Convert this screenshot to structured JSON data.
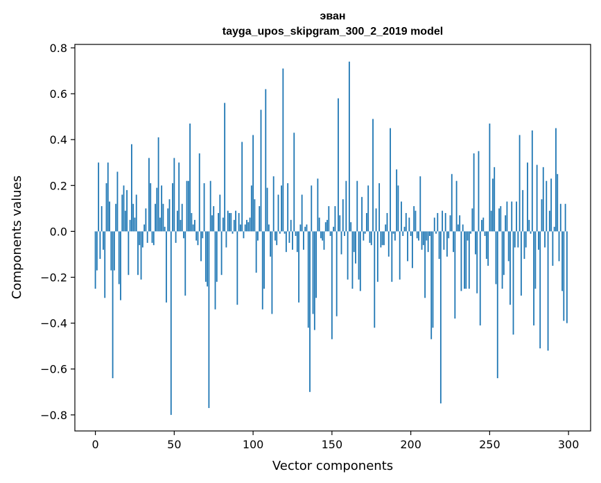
{
  "chart_data": {
    "type": "bar",
    "title": "эван",
    "subtitle": "tayga_upos_skipgram_300_2_2019 model",
    "xlabel": "Vector components",
    "ylabel": "Components values",
    "xlim": [
      -13,
      314
    ],
    "ylim": [
      -0.87,
      0.815
    ],
    "x_ticks": [
      0,
      50,
      100,
      150,
      200,
      250,
      300
    ],
    "x_tick_labels": [
      "0",
      "50",
      "100",
      "150",
      "200",
      "250",
      "300"
    ],
    "y_ticks": [
      -0.8,
      -0.6,
      -0.4,
      -0.2,
      0.0,
      0.2,
      0.4,
      0.6,
      0.8
    ],
    "y_tick_labels": [
      "−0.8",
      "−0.6",
      "−0.4",
      "−0.2",
      "0.0",
      "0.2",
      "0.4",
      "0.6",
      "0.8"
    ],
    "bar_color": "#1f77b4",
    "series": [
      {
        "name": "эван",
        "values": [
          -0.25,
          -0.17,
          0.3,
          -0.12,
          0.11,
          -0.08,
          -0.29,
          0.21,
          0.3,
          0.13,
          -0.17,
          -0.64,
          -0.17,
          0.12,
          0.26,
          -0.23,
          -0.3,
          0.16,
          0.2,
          0.09,
          0.18,
          -0.19,
          0.05,
          0.38,
          0.12,
          0.06,
          0.16,
          -0.19,
          -0.06,
          -0.21,
          -0.07,
          0.03,
          0.1,
          -0.05,
          0.32,
          0.21,
          -0.05,
          -0.06,
          0.12,
          0.19,
          0.41,
          0.06,
          0.2,
          0.12,
          0.02,
          -0.31,
          0.1,
          0.14,
          -0.8,
          0.21,
          0.32,
          -0.05,
          0.09,
          0.3,
          0.05,
          0.12,
          -0.03,
          -0.28,
          0.22,
          0.22,
          0.47,
          0.08,
          0.03,
          0.05,
          -0.04,
          -0.06,
          0.34,
          -0.13,
          -0.03,
          0.21,
          -0.22,
          -0.24,
          -0.77,
          0.22,
          0.07,
          0.11,
          -0.34,
          -0.22,
          0.08,
          0.16,
          -0.19,
          0.06,
          0.56,
          -0.07,
          0.09,
          0.08,
          0.08,
          -0.01,
          0.05,
          0.09,
          -0.32,
          0.08,
          0.03,
          0.39,
          -0.03,
          0.03,
          0.05,
          0.04,
          0.06,
          0.2,
          0.42,
          0.14,
          -0.18,
          -0.04,
          0.11,
          0.53,
          -0.34,
          -0.25,
          0.62,
          0.19,
          0.03,
          -0.11,
          -0.36,
          0.24,
          -0.04,
          -0.06,
          0.16,
          -0.01,
          0.2,
          0.71,
          -0.01,
          -0.09,
          0.21,
          -0.05,
          0.05,
          -0.08,
          0.43,
          -0.02,
          -0.09,
          -0.31,
          0.03,
          0.16,
          -0.08,
          0.02,
          0.03,
          -0.42,
          -0.7,
          0.2,
          -0.36,
          -0.43,
          -0.29,
          0.23,
          0.06,
          -0.03,
          -0.04,
          -0.08,
          0.04,
          0.05,
          0.11,
          -0.02,
          -0.47,
          0.02,
          0.11,
          -0.37,
          0.58,
          0.07,
          -0.1,
          0.14,
          -0.02,
          0.22,
          -0.21,
          0.74,
          0.04,
          -0.25,
          -0.09,
          -0.14,
          0.22,
          -0.21,
          -0.26,
          0.15,
          -0.04,
          -0.01,
          0.08,
          0.2,
          -0.05,
          -0.06,
          0.49,
          -0.42,
          0.1,
          -0.22,
          0.21,
          -0.07,
          -0.06,
          -0.06,
          0.03,
          0.08,
          -0.11,
          0.45,
          -0.22,
          -0.01,
          -0.04,
          0.27,
          0.2,
          -0.21,
          0.13,
          -0.02,
          0.02,
          0.08,
          -0.13,
          0.06,
          -0.02,
          -0.16,
          0.11,
          0.09,
          -0.03,
          -0.04,
          0.24,
          -0.08,
          -0.06,
          -0.29,
          -0.04,
          -0.09,
          -0.02,
          -0.47,
          -0.42,
          0.06,
          -0.01,
          0.08,
          -0.12,
          -0.75,
          0.09,
          -0.08,
          0.08,
          -0.11,
          -0.03,
          0.07,
          0.25,
          -0.09,
          -0.38,
          0.22,
          0.03,
          0.07,
          -0.26,
          0.03,
          -0.25,
          -0.25,
          -0.04,
          -0.25,
          -0.01,
          0.1,
          0.34,
          -0.1,
          -0.27,
          0.35,
          -0.41,
          0.05,
          0.06,
          -0.02,
          -0.12,
          -0.15,
          0.47,
          0.09,
          0.23,
          0.28,
          -0.23,
          -0.64,
          0.1,
          0.11,
          -0.25,
          -0.19,
          0.07,
          0.13,
          -0.13,
          -0.32,
          0.13,
          -0.45,
          -0.07,
          0.13,
          -0.07,
          0.42,
          -0.28,
          0.18,
          -0.12,
          -0.07,
          0.3,
          0.05,
          -0.01,
          0.44,
          -0.41,
          -0.25,
          0.29,
          -0.08,
          -0.51,
          0.14,
          0.28,
          -0.07,
          0.22,
          -0.52,
          0.09,
          0.23,
          -0.15,
          0.02,
          0.45,
          0.25,
          -0.13,
          0.12,
          -0.26,
          -0.39,
          0.12,
          -0.4
        ]
      }
    ]
  }
}
